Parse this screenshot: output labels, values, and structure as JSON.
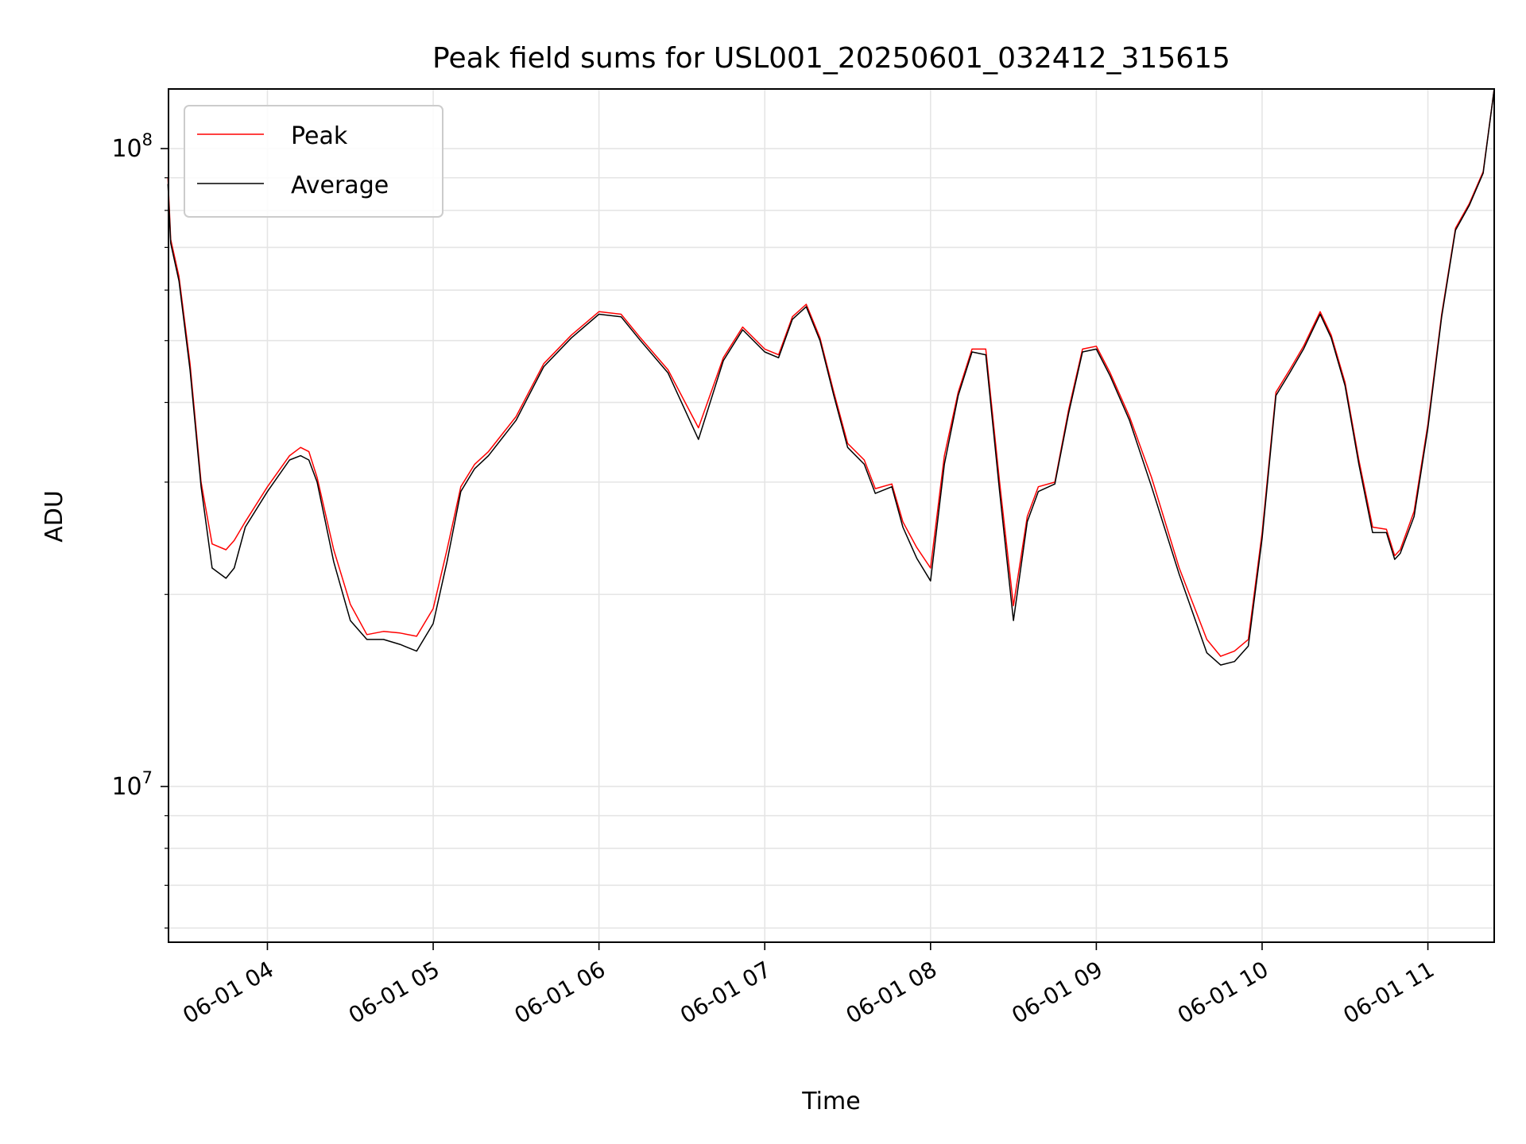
{
  "chart_data": {
    "type": "line",
    "title": "Peak field sums for USL001_20250601_032412_315615",
    "xlabel": "Time",
    "ylabel": "ADU",
    "yscale": "log",
    "xlim": [
      "2025-06-01 03:24:12",
      "2025-06-01 11:24:00"
    ],
    "ylim": [
      5700000,
      124000000
    ],
    "grid": true,
    "legend_position": "upper left",
    "x_tick_labels": [
      "06-01 04",
      "06-01 05",
      "06-01 06",
      "06-01 07",
      "06-01 08",
      "06-01 09",
      "06-01 10",
      "06-01 11"
    ],
    "x_ticks": [
      "2025-06-01 04:00",
      "2025-06-01 05:00",
      "2025-06-01 06:00",
      "2025-06-01 07:00",
      "2025-06-01 08:00",
      "2025-06-01 09:00",
      "2025-06-01 10:00",
      "2025-06-01 11:00"
    ],
    "y_tick_labels": [
      {
        "base": "10",
        "exp": "7",
        "value": 10000000
      },
      {
        "base": "10",
        "exp": "8",
        "value": 100000000
      }
    ],
    "x": [
      "2025-06-01 03:24",
      "2025-06-01 03:25",
      "2025-06-01 03:28",
      "2025-06-01 03:32",
      "2025-06-01 03:36",
      "2025-06-01 03:40",
      "2025-06-01 03:45",
      "2025-06-01 03:48",
      "2025-06-01 03:52",
      "2025-06-01 04:00",
      "2025-06-01 04:08",
      "2025-06-01 04:12",
      "2025-06-01 04:15",
      "2025-06-01 04:18",
      "2025-06-01 04:24",
      "2025-06-01 04:30",
      "2025-06-01 04:36",
      "2025-06-01 04:42",
      "2025-06-01 04:48",
      "2025-06-01 04:54",
      "2025-06-01 05:00",
      "2025-06-01 05:05",
      "2025-06-01 05:10",
      "2025-06-01 05:15",
      "2025-06-01 05:20",
      "2025-06-01 05:30",
      "2025-06-01 05:40",
      "2025-06-01 05:50",
      "2025-06-01 06:00",
      "2025-06-01 06:08",
      "2025-06-01 06:15",
      "2025-06-01 06:25",
      "2025-06-01 06:36",
      "2025-06-01 06:45",
      "2025-06-01 06:52",
      "2025-06-01 07:00",
      "2025-06-01 07:05",
      "2025-06-01 07:10",
      "2025-06-01 07:15",
      "2025-06-01 07:20",
      "2025-06-01 07:25",
      "2025-06-01 07:30",
      "2025-06-01 07:36",
      "2025-06-01 07:40",
      "2025-06-01 07:46",
      "2025-06-01 07:50",
      "2025-06-01 07:55",
      "2025-06-01 08:00",
      "2025-06-01 08:05",
      "2025-06-01 08:10",
      "2025-06-01 08:15",
      "2025-06-01 08:20",
      "2025-06-01 08:25",
      "2025-06-01 08:30",
      "2025-06-01 08:35",
      "2025-06-01 08:39",
      "2025-06-01 08:45",
      "2025-06-01 08:50",
      "2025-06-01 08:55",
      "2025-06-01 09:00",
      "2025-06-01 09:05",
      "2025-06-01 09:12",
      "2025-06-01 09:20",
      "2025-06-01 09:30",
      "2025-06-01 09:40",
      "2025-06-01 09:45",
      "2025-06-01 09:50",
      "2025-06-01 09:55",
      "2025-06-01 10:00",
      "2025-06-01 10:05",
      "2025-06-01 10:10",
      "2025-06-01 10:15",
      "2025-06-01 10:21",
      "2025-06-01 10:25",
      "2025-06-01 10:30",
      "2025-06-01 10:35",
      "2025-06-01 10:40",
      "2025-06-01 10:45",
      "2025-06-01 10:48",
      "2025-06-01 10:50",
      "2025-06-01 10:55",
      "2025-06-01 11:00",
      "2025-06-01 11:05",
      "2025-06-01 11:10",
      "2025-06-01 11:15",
      "2025-06-01 11:20",
      "2025-06-01 11:24"
    ],
    "series": [
      {
        "name": "Peak",
        "color": "#ff0000",
        "values": [
          90000000,
          72000000,
          63000000,
          46000000,
          30000000,
          24000000,
          23500000,
          24300000,
          26000000,
          29500000,
          33000000,
          34000000,
          33500000,
          30500000,
          23500000,
          19300000,
          17300000,
          17500000,
          17400000,
          17200000,
          19000000,
          23500000,
          29500000,
          32000000,
          33500000,
          38000000,
          46000000,
          51000000,
          55500000,
          55000000,
          50500000,
          45000000,
          36500000,
          47000000,
          52500000,
          48500000,
          47500000,
          54500000,
          57000000,
          50500000,
          41500000,
          34500000,
          32500000,
          29300000,
          29800000,
          26000000,
          23700000,
          22000000,
          33000000,
          41500000,
          48500000,
          48500000,
          30000000,
          19200000,
          26500000,
          29500000,
          30000000,
          39000000,
          48500000,
          49000000,
          44500000,
          38000000,
          30500000,
          22000000,
          17000000,
          16000000,
          16300000,
          17000000,
          25000000,
          41500000,
          45000000,
          49000000,
          55500000,
          51000000,
          43000000,
          32500000,
          25500000,
          25300000,
          23000000,
          23500000,
          27000000,
          37000000,
          55000000,
          75000000,
          82000000,
          92000000,
          124000000
        ]
      },
      {
        "name": "Average",
        "color": "#000000",
        "values": [
          88000000,
          71000000,
          62000000,
          45000000,
          29500000,
          22000000,
          21200000,
          22000000,
          25500000,
          29000000,
          32500000,
          33000000,
          32500000,
          30000000,
          22500000,
          18200000,
          17000000,
          17000000,
          16700000,
          16300000,
          18000000,
          22500000,
          29000000,
          31500000,
          33000000,
          37500000,
          45500000,
          50500000,
          55000000,
          54500000,
          50000000,
          44500000,
          35000000,
          46500000,
          52000000,
          48000000,
          47000000,
          54000000,
          56500000,
          50000000,
          41000000,
          34000000,
          32000000,
          28800000,
          29500000,
          25500000,
          22800000,
          21000000,
          32000000,
          41000000,
          48000000,
          47500000,
          29000000,
          18200000,
          26000000,
          29000000,
          29800000,
          38500000,
          48000000,
          48500000,
          44000000,
          37500000,
          29500000,
          21500000,
          16200000,
          15500000,
          15700000,
          16600000,
          24500000,
          41000000,
          44500000,
          48500000,
          55000000,
          50500000,
          42500000,
          32000000,
          25000000,
          25000000,
          22700000,
          23200000,
          26500000,
          36500000,
          54500000,
          74500000,
          81500000,
          91500000,
          124000000
        ]
      }
    ]
  }
}
